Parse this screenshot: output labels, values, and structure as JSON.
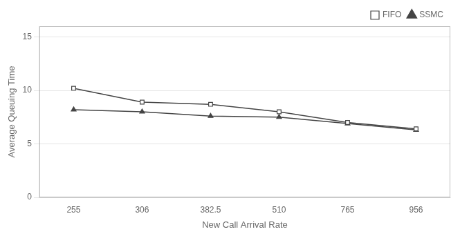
{
  "chart_data": {
    "type": "line",
    "xlabel": "New Call Arrival Rate",
    "ylabel": "Average Queuing Time",
    "categories": [
      "255",
      "306",
      "382.5",
      "510",
      "765",
      "956"
    ],
    "series": [
      {
        "name": "FIFO",
        "color": "#444444",
        "marker": "open-square",
        "values": [
          10.2,
          8.9,
          8.7,
          8.0,
          7.0,
          6.4
        ]
      },
      {
        "name": "SSMC",
        "color": "#444444",
        "marker": "triangle",
        "values": [
          8.2,
          8.0,
          7.6,
          7.5,
          6.9,
          6.3
        ]
      }
    ],
    "ylim": [
      0,
      16
    ],
    "yticks": [
      0,
      5,
      10,
      15
    ],
    "grid": "y",
    "legend": "upper right"
  }
}
